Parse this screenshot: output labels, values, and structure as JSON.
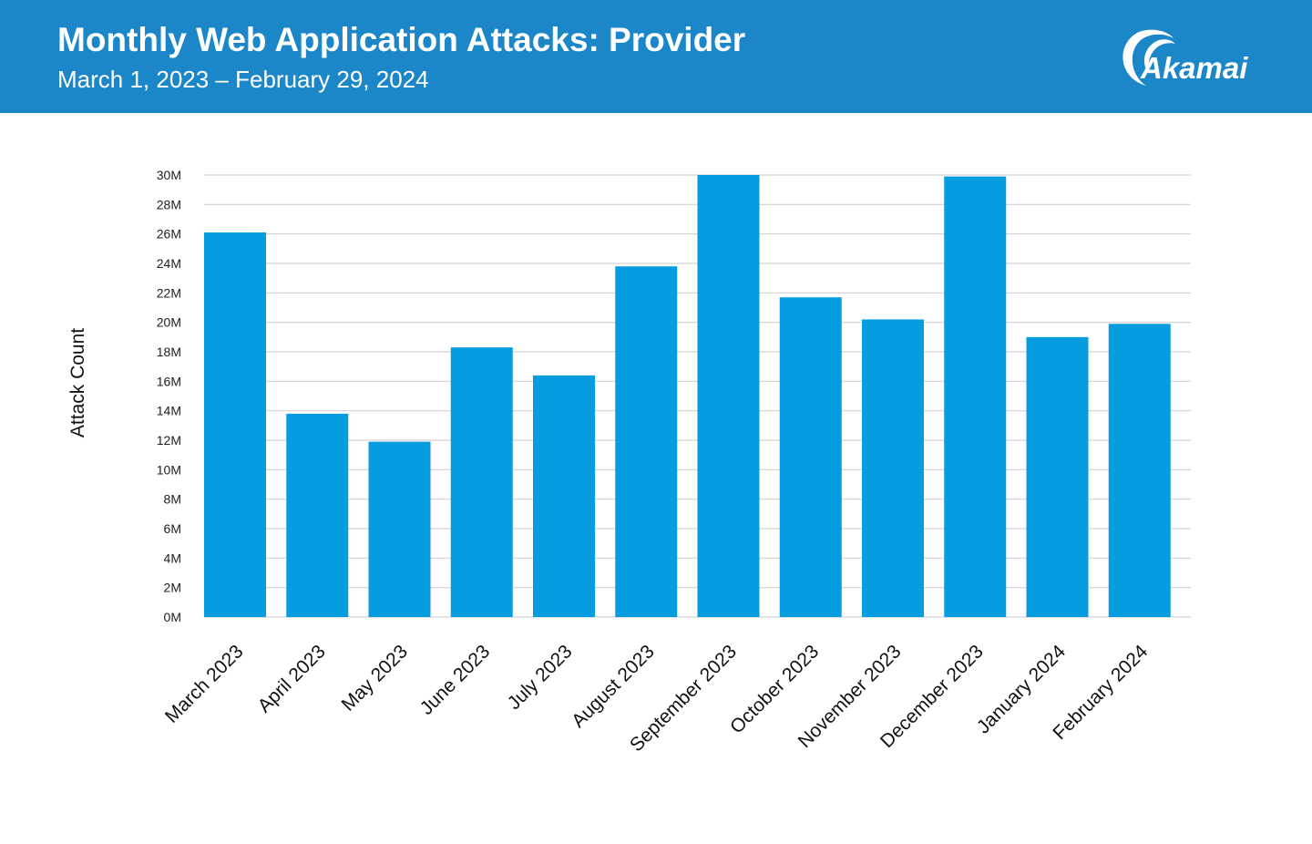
{
  "header": {
    "title": "Monthly Web Application Attacks: Provider",
    "subtitle": "March 1, 2023 – February 29, 2024",
    "logo_text": "Akamai",
    "background_color": "#1b87c9"
  },
  "chart_data": {
    "type": "bar",
    "title": "Monthly Web Application Attacks: Provider",
    "subtitle": "March 1, 2023 – February 29, 2024",
    "xlabel": "",
    "ylabel": "Attack Count",
    "ylim": [
      0,
      30000000
    ],
    "yticks": [
      0,
      2000000,
      4000000,
      6000000,
      8000000,
      10000000,
      12000000,
      14000000,
      16000000,
      18000000,
      20000000,
      22000000,
      24000000,
      26000000,
      28000000,
      30000000
    ],
    "ytick_labels": [
      "0M",
      "2M",
      "4M",
      "6M",
      "8M",
      "10M",
      "12M",
      "14M",
      "16M",
      "18M",
      "20M",
      "22M",
      "24M",
      "26M",
      "28M",
      "30M"
    ],
    "categories": [
      "March 2023",
      "April 2023",
      "May 2023",
      "June 2023",
      "July 2023",
      "August 2023",
      "September 2023",
      "October 2023",
      "November 2023",
      "December 2023",
      "January 2024",
      "February 2024"
    ],
    "values": [
      26100000,
      13800000,
      11900000,
      18300000,
      16400000,
      23800000,
      30000000,
      21700000,
      20200000,
      29900000,
      19000000,
      19900000
    ],
    "grid": true,
    "legend": "none",
    "bar_color": "#069de0",
    "grid_color": "#d3d3d3"
  }
}
